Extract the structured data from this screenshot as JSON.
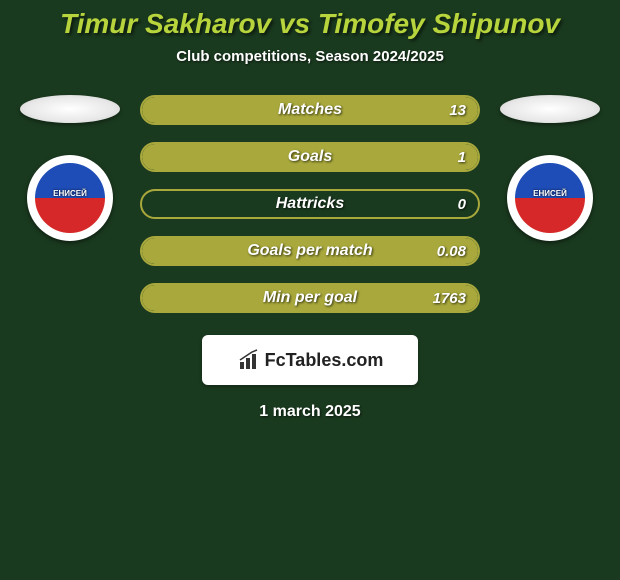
{
  "background_color": "#1a3a1f",
  "title": {
    "text": "Timur Sakharov vs Timofey Shipunov",
    "color": "#b8d43c",
    "fontsize": 28
  },
  "subtitle": {
    "text": "Club competitions, Season 2024/2025",
    "color": "#ffffff",
    "fontsize": 15
  },
  "left_club": {
    "name": "ЕНИСЕЙ",
    "top_color": "#1e4db7",
    "bottom_color": "#d62828"
  },
  "right_club": {
    "name": "ЕНИСЕЙ",
    "top_color": "#1e4db7",
    "bottom_color": "#d62828"
  },
  "stats": {
    "bar_border_color": "#a8a83c",
    "bar_fill_color": "#a8a83c",
    "label_color": "#ffffff",
    "value_color": "#ffffff",
    "label_fontsize": 16,
    "value_fontsize": 15,
    "rows": [
      {
        "label": "Matches",
        "value": "13",
        "fill_pct": 100
      },
      {
        "label": "Goals",
        "value": "1",
        "fill_pct": 100
      },
      {
        "label": "Hattricks",
        "value": "0",
        "fill_pct": 0
      },
      {
        "label": "Goals per match",
        "value": "0.08",
        "fill_pct": 100
      },
      {
        "label": "Min per goal",
        "value": "1763",
        "fill_pct": 100
      }
    ]
  },
  "logo": {
    "text": "FcTables.com"
  },
  "date": {
    "text": "1 march 2025",
    "color": "#ffffff",
    "fontsize": 16
  }
}
